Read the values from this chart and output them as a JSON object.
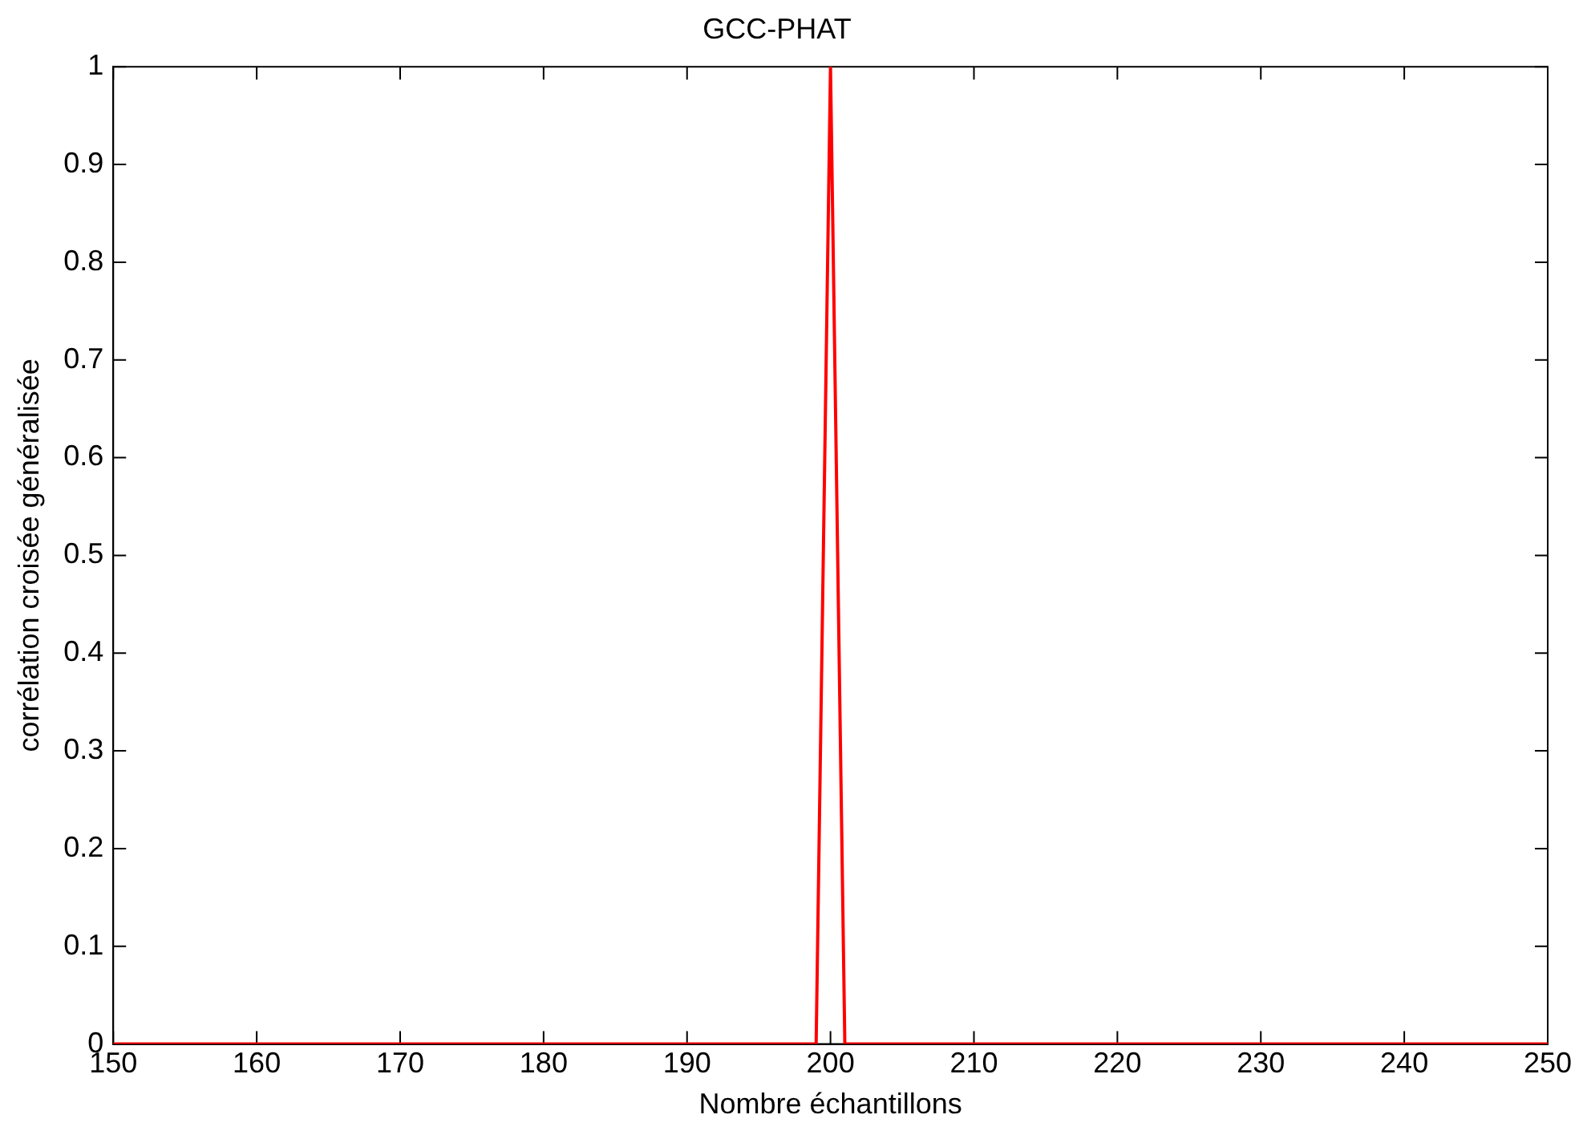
{
  "chart_data": {
    "type": "line",
    "title": "GCC-PHAT",
    "xlabel": "Nombre échantillons",
    "ylabel": "corrélation croisée généralisée",
    "x": [
      150,
      199,
      200,
      201,
      250
    ],
    "series": [
      {
        "color": "#ff0000",
        "values": [
          0,
          0,
          1,
          0,
          0
        ]
      }
    ],
    "xlim": [
      150,
      250
    ],
    "xticks": [
      150,
      160,
      170,
      180,
      190,
      200,
      210,
      220,
      230,
      240,
      250
    ],
    "ylim": [
      0,
      1
    ],
    "yticks": [
      0,
      0.1,
      0.2,
      0.3,
      0.4,
      0.5,
      0.6,
      0.7,
      0.8,
      0.9,
      1
    ],
    "grid": false,
    "legend": false,
    "marker": "none",
    "line_style": "solid"
  }
}
